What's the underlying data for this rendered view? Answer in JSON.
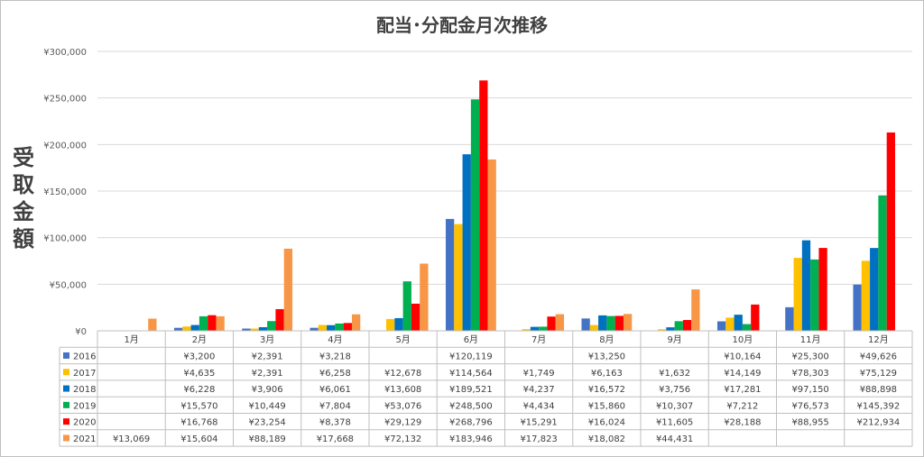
{
  "chart_data": {
    "type": "bar",
    "title": "配当･分配金月次推移",
    "ylabel": "受取金額",
    "xlabel": "",
    "ylim": [
      0,
      300000
    ],
    "yticks": [
      "¥0",
      "¥50,000",
      "¥100,000",
      "¥150,000",
      "¥200,000",
      "¥250,000",
      "¥300,000"
    ],
    "grid": true,
    "legend": "data-table",
    "categories": [
      "1月",
      "2月",
      "3月",
      "4月",
      "5月",
      "6月",
      "7月",
      "8月",
      "9月",
      "10月",
      "11月",
      "12月"
    ],
    "series": [
      {
        "name": "2016",
        "color": "#4472c4",
        "values": [
          null,
          3200,
          2391,
          3218,
          null,
          120119,
          null,
          13250,
          null,
          10164,
          25300,
          49626
        ],
        "labels": [
          "",
          "¥3,200",
          "¥2,391",
          "¥3,218",
          "",
          "¥120,119",
          "",
          "¥13,250",
          "",
          "¥10,164",
          "¥25,300",
          "¥49,626"
        ]
      },
      {
        "name": "2017",
        "color": "#ffc000",
        "values": [
          null,
          4635,
          2391,
          6258,
          12678,
          114564,
          1749,
          6163,
          1632,
          14149,
          78303,
          75129
        ],
        "labels": [
          "",
          "¥4,635",
          "¥2,391",
          "¥6,258",
          "¥12,678",
          "¥114,564",
          "¥1,749",
          "¥6,163",
          "¥1,632",
          "¥14,149",
          "¥78,303",
          "¥75,129"
        ]
      },
      {
        "name": "2018",
        "color": "#0070c0",
        "values": [
          null,
          6228,
          3906,
          6061,
          13608,
          189521,
          4237,
          16572,
          3756,
          17281,
          97150,
          88898
        ],
        "labels": [
          "",
          "¥6,228",
          "¥3,906",
          "¥6,061",
          "¥13,608",
          "¥189,521",
          "¥4,237",
          "¥16,572",
          "¥3,756",
          "¥17,281",
          "¥97,150",
          "¥88,898"
        ]
      },
      {
        "name": "2019",
        "color": "#00b050",
        "values": [
          null,
          15570,
          10449,
          7804,
          53076,
          248500,
          4434,
          15860,
          10307,
          7212,
          76573,
          145392
        ],
        "labels": [
          "",
          "¥15,570",
          "¥10,449",
          "¥7,804",
          "¥53,076",
          "¥248,500",
          "¥4,434",
          "¥15,860",
          "¥10,307",
          "¥7,212",
          "¥76,573",
          "¥145,392"
        ]
      },
      {
        "name": "2020",
        "color": "#ff0000",
        "values": [
          null,
          16768,
          23254,
          8378,
          29129,
          268796,
          15291,
          16024,
          11605,
          28188,
          88955,
          212934
        ],
        "labels": [
          "",
          "¥16,768",
          "¥23,254",
          "¥8,378",
          "¥29,129",
          "¥268,796",
          "¥15,291",
          "¥16,024",
          "¥11,605",
          "¥28,188",
          "¥88,955",
          "¥212,934"
        ]
      },
      {
        "name": "2021",
        "color": "#f79646",
        "values": [
          13069,
          15604,
          88189,
          17668,
          72132,
          183946,
          17823,
          18082,
          44431,
          null,
          null,
          null
        ],
        "labels": [
          "¥13,069",
          "¥15,604",
          "¥88,189",
          "¥17,668",
          "¥72,132",
          "¥183,946",
          "¥17,823",
          "¥18,082",
          "¥44,431",
          "",
          "",
          ""
        ]
      }
    ]
  }
}
